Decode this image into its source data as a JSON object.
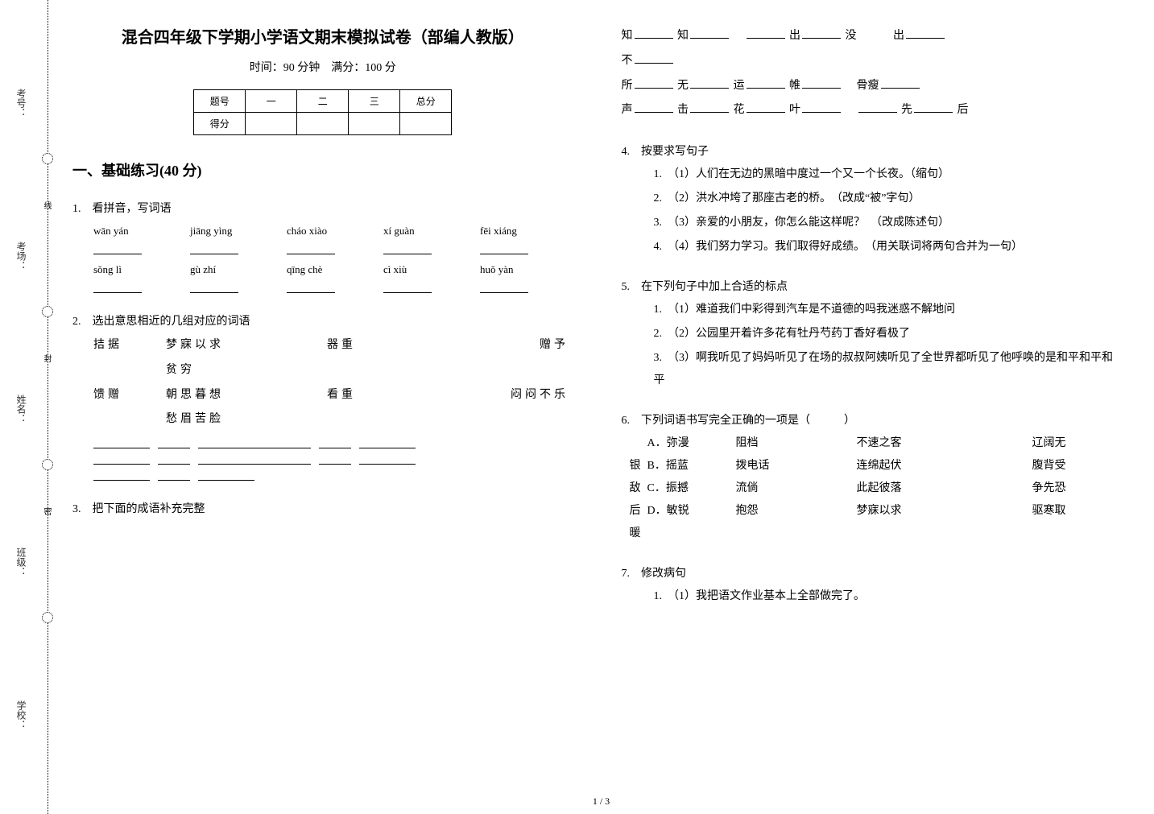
{
  "binding": {
    "labels": [
      "考号：",
      "考场：",
      "姓名：",
      "班级：",
      "学校："
    ],
    "seals": [
      "线",
      "封",
      "密"
    ]
  },
  "header": {
    "title": "混合四年级下学期小学语文期末模拟试卷（部编人教版）",
    "subtitle": "时间：90 分钟　满分：100 分"
  },
  "score_table": {
    "cols": [
      "题号",
      "一",
      "二",
      "三",
      "总分"
    ],
    "row2_label": "得分"
  },
  "section1": {
    "title": "一、基础练习(40 分)"
  },
  "q1": {
    "label": "1.　看拼音，写词语",
    "row1": [
      "wān yán",
      "jiāng yìng",
      "cháo xiào",
      "xí guàn",
      "fēi xiáng"
    ],
    "row2": [
      "sǒng lì",
      "gù zhí",
      "qīng chè",
      "cì xiù",
      "huǒ yàn"
    ]
  },
  "q2": {
    "label": "2.　选出意思相近的几组对应的词语",
    "rows": [
      [
        "拮据",
        "梦寐以求",
        "器重",
        "赠予"
      ],
      [
        "",
        "贫穷",
        "",
        ""
      ],
      [
        "馈赠",
        "朝思暮想",
        "看重",
        "闷闷不乐"
      ],
      [
        "",
        "愁眉苦脸",
        "",
        ""
      ]
    ]
  },
  "q3": {
    "label": "3.　把下面的成语补充完整",
    "lines": [
      [
        "知",
        "知",
        "",
        "出",
        "没",
        "出"
      ],
      [
        "不",
        "",
        "",
        "",
        "",
        ""
      ],
      [
        "所",
        "无",
        "运",
        "帷",
        "骨瘦",
        ""
      ],
      [
        "声",
        "击",
        "花",
        "叶",
        "先",
        "后"
      ]
    ]
  },
  "q4": {
    "label": "4.　按要求写句子",
    "items": [
      "（1）人们在无边的黑暗中度过一个又一个长夜。（缩句）",
      "（2）洪水冲垮了那座古老的桥。　（改成“被”字句）",
      "（3）亲爱的小朋友，你怎么能这样呢？　（改成陈述句）",
      "（4）我们努力学习。我们取得好成绩。　（用关联词将两句合并为一句）"
    ]
  },
  "q5": {
    "label": "5.　在下列句子中加上合适的标点",
    "items_html": [
      "（1）{u}难道我们中彩得到汽车是不道德的吗{u}我迷惑不解地问{u}",
      "（2）公园里开着许多花{u}有牡丹{u}芍药{u}丁香{u}好看极了{u}",
      "（3）啊{u}我听见了{u}妈妈听见了{u}在场的叔叔阿姨听见了{u}全世界都听见了{u}他呼唤的是{u}和平{u}和平{u}和平{u}"
    ]
  },
  "q6": {
    "label": "6.　下列词语书写完全正确的一项是（　　　）",
    "options": [
      {
        "lead": "",
        "a": "A．弥漫",
        "b": "阻档",
        "c": "不速之客",
        "d": "辽阔无"
      },
      {
        "lead": "银",
        "a": "B．摇蓝",
        "b": "拨电话",
        "c": "连绵起伏",
        "d": "腹背受"
      },
      {
        "lead": "敌",
        "a": "C．振撼",
        "b": "流倘",
        "c": "此起彼落",
        "d": "争先恐"
      },
      {
        "lead": "后",
        "a": "D．敏锐",
        "b": "抱怨",
        "c": "梦寐以求",
        "d": "驱寒取"
      },
      {
        "lead": "暖",
        "a": "",
        "b": "",
        "c": "",
        "d": ""
      }
    ]
  },
  "q7": {
    "label": "7.　修改病句",
    "items": [
      "（1）我把语文作业基本上全部做完了。"
    ]
  },
  "pagenum": "1 / 3"
}
